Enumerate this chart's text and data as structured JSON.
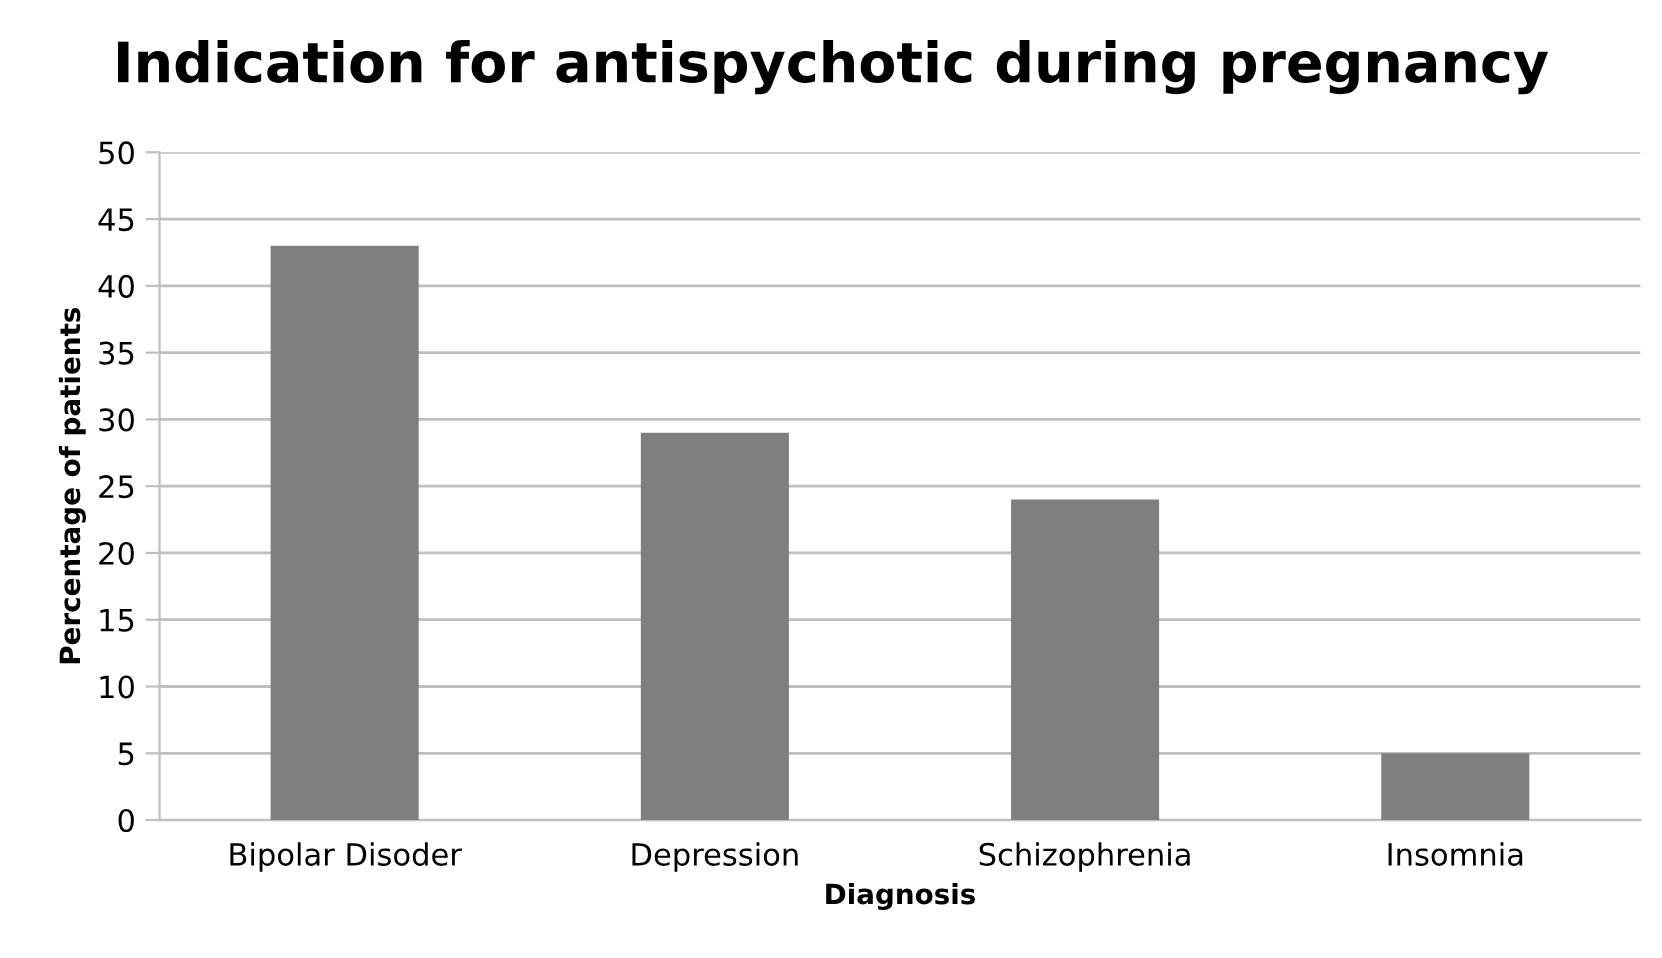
{
  "chart_data": {
    "type": "bar",
    "title": "Indication for antispychotic during pregnancy",
    "xlabel": "Diagnosis",
    "ylabel": "Percentage of patients",
    "categories": [
      "Bipolar Disoder",
      "Depression",
      "Schizophrenia",
      "Insomnia"
    ],
    "values": [
      43,
      29,
      24,
      5
    ],
    "color": "#7f7f7f",
    "ylim": [
      0,
      50
    ],
    "yticks": [
      0,
      5,
      10,
      15,
      20,
      25,
      30,
      35,
      40,
      45,
      50
    ],
    "grid": "y"
  }
}
